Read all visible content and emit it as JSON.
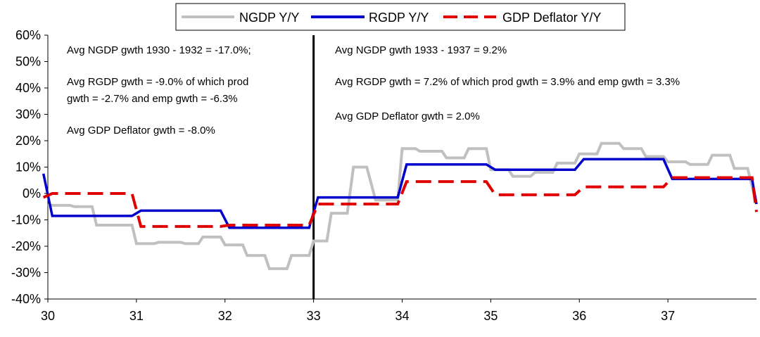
{
  "chart_data": {
    "type": "line",
    "title": "",
    "xlabel": "",
    "ylabel": "",
    "x_ticks": [
      "30",
      "31",
      "32",
      "33",
      "34",
      "35",
      "36",
      "37"
    ],
    "x_range": [
      30,
      38
    ],
    "y_range": [
      -40,
      60
    ],
    "y_ticks": [
      -40,
      -30,
      -20,
      -10,
      0,
      10,
      20,
      30,
      40,
      50,
      60
    ],
    "y_tick_labels": [
      "-40%",
      "-30%",
      "-20%",
      "-10%",
      "0%",
      "10%",
      "20%",
      "30%",
      "40%",
      "50%",
      "60%"
    ],
    "grid": false,
    "legend": {
      "position": "top"
    },
    "divider_x": 33,
    "series": [
      {
        "name": "NGDP Y/Y",
        "color": "#c0c0c0",
        "style": "solid",
        "points": [
          [
            30.0,
            -4.5
          ],
          [
            30.25,
            -4.5
          ],
          [
            30.3,
            -5.0
          ],
          [
            30.5,
            -5.0
          ],
          [
            30.55,
            -12.0
          ],
          [
            30.95,
            -12.0
          ],
          [
            31.0,
            -19.0
          ],
          [
            31.2,
            -19.0
          ],
          [
            31.25,
            -18.5
          ],
          [
            31.5,
            -18.5
          ],
          [
            31.55,
            -19.0
          ],
          [
            31.7,
            -19.0
          ],
          [
            31.75,
            -16.5
          ],
          [
            31.95,
            -16.5
          ],
          [
            32.0,
            -19.5
          ],
          [
            32.2,
            -19.5
          ],
          [
            32.25,
            -23.5
          ],
          [
            32.45,
            -23.5
          ],
          [
            32.5,
            -28.5
          ],
          [
            32.7,
            -28.5
          ],
          [
            32.75,
            -23.5
          ],
          [
            32.95,
            -23.5
          ],
          [
            33.0,
            -18.0
          ],
          [
            33.15,
            -18.0
          ],
          [
            33.2,
            -7.5
          ],
          [
            33.38,
            -7.5
          ],
          [
            33.45,
            10.0
          ],
          [
            33.6,
            10.0
          ],
          [
            33.7,
            -2.5
          ],
          [
            33.95,
            -2.5
          ],
          [
            34.0,
            17.0
          ],
          [
            34.15,
            17.0
          ],
          [
            34.2,
            16.0
          ],
          [
            34.45,
            16.0
          ],
          [
            34.5,
            13.5
          ],
          [
            34.7,
            13.5
          ],
          [
            34.75,
            17.0
          ],
          [
            34.95,
            17.0
          ],
          [
            35.0,
            9.0
          ],
          [
            35.2,
            9.0
          ],
          [
            35.25,
            6.5
          ],
          [
            35.45,
            6.5
          ],
          [
            35.5,
            8.0
          ],
          [
            35.7,
            8.0
          ],
          [
            35.75,
            11.5
          ],
          [
            35.95,
            11.5
          ],
          [
            36.0,
            15.0
          ],
          [
            36.2,
            15.0
          ],
          [
            36.25,
            19.0
          ],
          [
            36.45,
            19.0
          ],
          [
            36.5,
            17.0
          ],
          [
            36.7,
            17.0
          ],
          [
            36.75,
            14.0
          ],
          [
            36.95,
            14.0
          ],
          [
            37.0,
            12.0
          ],
          [
            37.2,
            12.0
          ],
          [
            37.25,
            11.0
          ],
          [
            37.45,
            11.0
          ],
          [
            37.5,
            14.5
          ],
          [
            37.7,
            14.5
          ],
          [
            37.75,
            9.5
          ],
          [
            37.9,
            9.5
          ],
          [
            38.0,
            -4.0
          ]
        ]
      },
      {
        "name": "RGDP Y/Y",
        "color": "#0000cc",
        "style": "solid",
        "points": [
          [
            29.95,
            7.5
          ],
          [
            30.05,
            -8.5
          ],
          [
            30.95,
            -8.5
          ],
          [
            31.05,
            -6.5
          ],
          [
            31.95,
            -6.5
          ],
          [
            32.05,
            -13.0
          ],
          [
            32.95,
            -13.0
          ],
          [
            33.05,
            -1.5
          ],
          [
            33.95,
            -1.5
          ],
          [
            34.05,
            11.0
          ],
          [
            34.95,
            11.0
          ],
          [
            35.05,
            9.0
          ],
          [
            35.95,
            9.0
          ],
          [
            36.05,
            13.0
          ],
          [
            36.95,
            13.0
          ],
          [
            37.05,
            5.5
          ],
          [
            37.95,
            5.5
          ],
          [
            38.0,
            -4.0
          ]
        ]
      },
      {
        "name": "GDP Deflator Y/Y",
        "color": "#e00000",
        "style": "dashed",
        "points": [
          [
            29.95,
            -1.5
          ],
          [
            30.05,
            0.0
          ],
          [
            30.95,
            0.0
          ],
          [
            31.05,
            -12.5
          ],
          [
            31.95,
            -12.5
          ],
          [
            32.05,
            -12.0
          ],
          [
            32.95,
            -12.0
          ],
          [
            33.05,
            -4.0
          ],
          [
            33.95,
            -4.0
          ],
          [
            34.05,
            4.5
          ],
          [
            34.95,
            4.5
          ],
          [
            35.05,
            -0.5
          ],
          [
            35.95,
            -0.5
          ],
          [
            36.05,
            2.5
          ],
          [
            36.95,
            2.5
          ],
          [
            37.05,
            6.0
          ],
          [
            37.95,
            6.0
          ],
          [
            38.0,
            -7.0
          ]
        ]
      }
    ],
    "annotations_left": [
      "Avg NGDP gwth 1930 - 1932 = -17.0%;",
      "Avg RGDP gwth = -9.0% of which prod",
      "gwth = -2.7% and emp gwth = -6.3%",
      "Avg GDP Deflator gwth = -8.0%"
    ],
    "annotations_right": [
      "Avg NGDP gwth 1933 - 1937 = 9.2%",
      "Avg RGDP gwth = 7.2% of which prod gwth = 3.9% and emp gwth = 3.3%",
      "Avg GDP Deflator gwth = 2.0%"
    ]
  }
}
